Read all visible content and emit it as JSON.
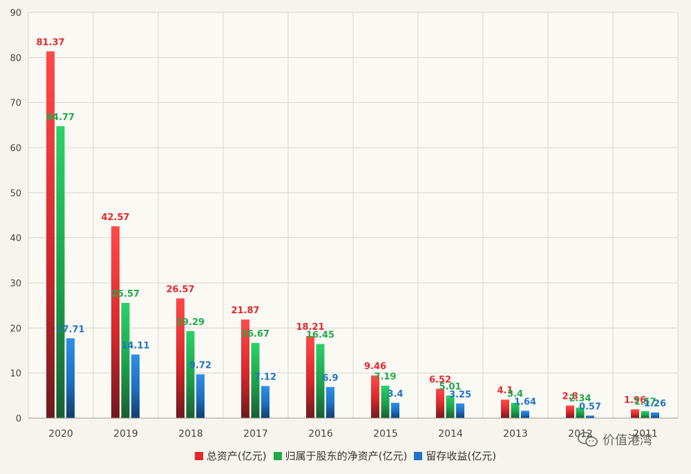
{
  "chart_data": {
    "type": "bar",
    "categories": [
      "2020",
      "2019",
      "2018",
      "2017",
      "2016",
      "2015",
      "2014",
      "2013",
      "2012",
      "2011"
    ],
    "series": [
      {
        "name": "总资产(亿元)",
        "color": "#e8262b",
        "labels": [
          "81.37",
          "42.57",
          "26.57",
          "21.87",
          "18.21",
          "9.46",
          "6.52",
          "4.1",
          "2.8",
          "1.96"
        ],
        "values": [
          81.37,
          42.57,
          26.57,
          21.87,
          18.21,
          9.46,
          6.52,
          4.1,
          2.8,
          1.96
        ]
      },
      {
        "name": "归属于股东的净资产(亿元)",
        "color": "#1faa4a",
        "labels": [
          "64.77",
          "25.57",
          "19.29",
          "16.67",
          "16.45",
          "7.19",
          "5.01",
          "3.4",
          "2.34",
          "1.57"
        ],
        "values": [
          64.77,
          25.57,
          19.29,
          16.67,
          16.45,
          7.19,
          5.01,
          3.4,
          2.34,
          1.57
        ]
      },
      {
        "name": "留存收益(亿元)",
        "color": "#1f74c7",
        "labels": [
          "17.71",
          "14.11",
          "9.72",
          "7.12",
          "6.9",
          "3.4",
          "3.25",
          "1.64",
          "0.57",
          "1.26"
        ],
        "values": [
          17.71,
          14.11,
          9.72,
          7.12,
          6.9,
          3.4,
          3.25,
          1.64,
          0.57,
          1.26
        ]
      }
    ],
    "ylim": [
      0,
      90
    ],
    "yticks": [
      "0",
      "10",
      "20",
      "30",
      "40",
      "50",
      "60",
      "70",
      "80",
      "90"
    ],
    "grid": true,
    "legend_position": "bottom"
  },
  "watermark": {
    "text": "价值港湾",
    "icon": "wechat-icon"
  }
}
